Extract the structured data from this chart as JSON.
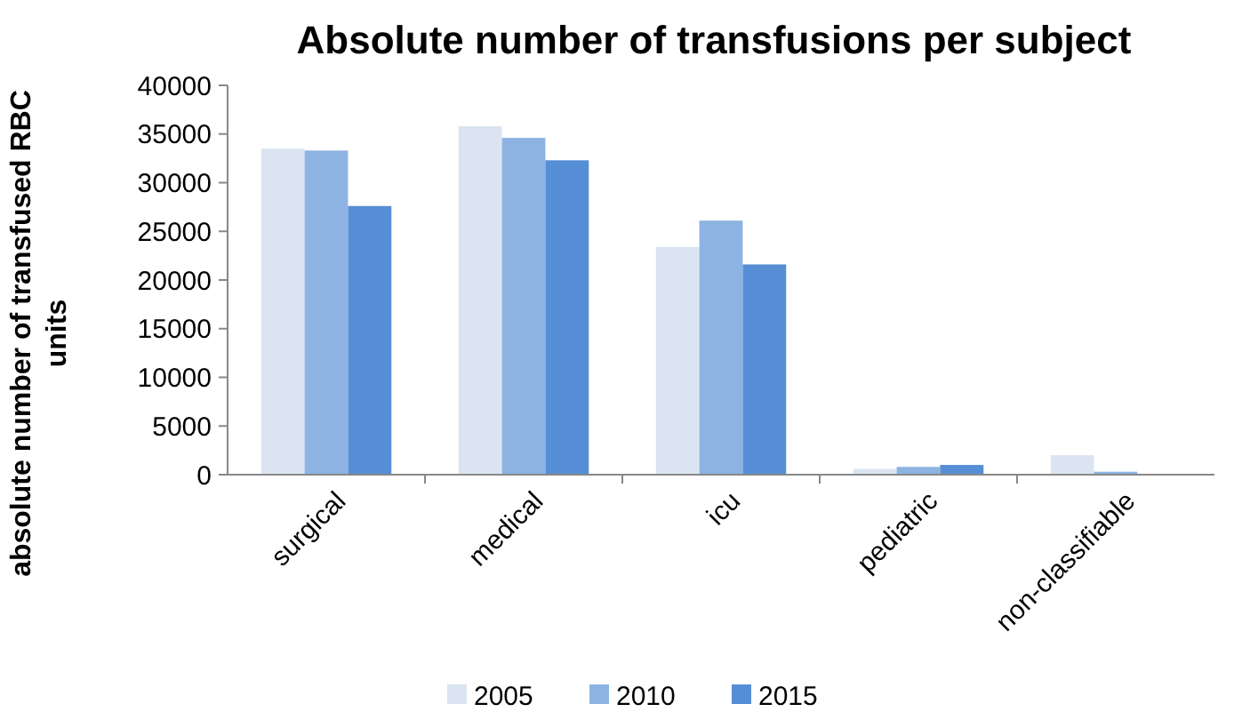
{
  "chart_data": {
    "type": "bar",
    "title": "Absolute number of transfusions per subject",
    "ylabel": "absolute number of transfused RBC units",
    "categories": [
      "surgical",
      "medical",
      "icu",
      "pediatric",
      "non-classifiable"
    ],
    "series": [
      {
        "name": "2005",
        "color": "#dbe5f1",
        "values": [
          33500,
          35800,
          23400,
          600,
          2000
        ]
      },
      {
        "name": "2010",
        "color": "#8db3e2",
        "values": [
          33300,
          34600,
          26100,
          800,
          300
        ]
      },
      {
        "name": "2015",
        "color": "#558ed5",
        "values": [
          27600,
          32300,
          21600,
          1000,
          0
        ]
      }
    ],
    "ylim": [
      0,
      40000
    ],
    "yticks": [
      0,
      5000,
      10000,
      15000,
      20000,
      25000,
      30000,
      35000,
      40000
    ],
    "grid": false,
    "legend": "bottom"
  }
}
